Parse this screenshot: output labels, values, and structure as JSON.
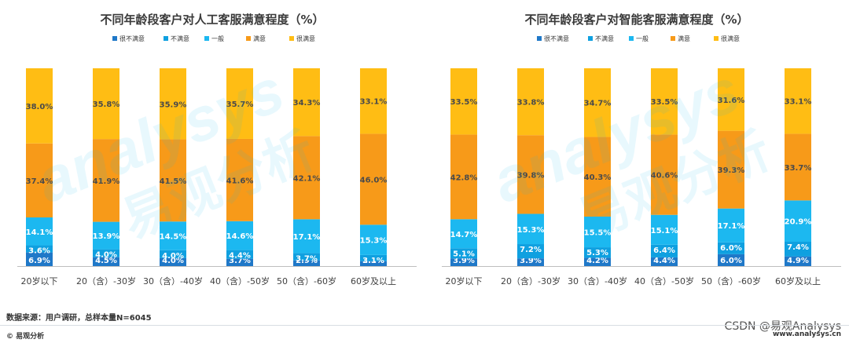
{
  "colors": {
    "很不满意": "#1f78c8",
    "不满意": "#0fa0e0",
    "一般": "#1cb8f0",
    "满意": "#f79a19",
    "很满意": "#ffbd14"
  },
  "chart_data": [
    {
      "type": "bar",
      "stacked": true,
      "title": "不同年龄段客户对人工客服满意程度（%）",
      "categories": [
        "20岁以下",
        "20（含）-30岁",
        "30（含）-40岁",
        "40（含）-50岁",
        "50（含）-60岁",
        "60岁及以上"
      ],
      "legend": [
        "很不满意",
        "不满意",
        "一般",
        "满意",
        "很满意"
      ],
      "legend_position": "top",
      "series": [
        {
          "name": "很不满意",
          "values": [
            6.9,
            4.5,
            4.0,
            3.7,
            2.9,
            2.5
          ]
        },
        {
          "name": "不满意",
          "values": [
            3.6,
            4.0,
            4.0,
            4.4,
            3.7,
            3.1
          ]
        },
        {
          "name": "一般",
          "values": [
            14.1,
            13.9,
            14.5,
            14.6,
            17.1,
            15.3
          ]
        },
        {
          "name": "满意",
          "values": [
            37.4,
            41.9,
            41.5,
            41.6,
            42.1,
            46.0
          ]
        },
        {
          "name": "很满意",
          "values": [
            38.0,
            35.8,
            35.9,
            35.7,
            34.3,
            33.1
          ]
        }
      ],
      "ylim": [
        0,
        100
      ],
      "grid": false
    },
    {
      "type": "bar",
      "stacked": true,
      "title": "不同年龄段客户对智能客服满意程度（%）",
      "categories": [
        "20岁以下",
        "20（含）-30岁",
        "30（含）-40岁",
        "40（含）-50岁",
        "50（含）-60岁",
        "60岁及以上"
      ],
      "legend": [
        "很不满意",
        "不满意",
        "一般",
        "满意",
        "很满意"
      ],
      "legend_position": "top",
      "series": [
        {
          "name": "很不满意",
          "values": [
            3.9,
            3.9,
            4.2,
            4.4,
            6.0,
            4.9
          ]
        },
        {
          "name": "不满意",
          "values": [
            5.1,
            7.2,
            5.3,
            6.4,
            6.0,
            7.4
          ]
        },
        {
          "name": "一般",
          "values": [
            14.7,
            15.3,
            15.5,
            15.1,
            17.1,
            20.9
          ]
        },
        {
          "name": "满意",
          "values": [
            42.8,
            39.8,
            40.3,
            40.6,
            39.3,
            33.7
          ]
        },
        {
          "name": "很满意",
          "values": [
            33.5,
            33.8,
            34.7,
            33.5,
            31.6,
            33.1
          ]
        }
      ],
      "ylim": [
        0,
        100
      ],
      "grid": false
    }
  ],
  "watermark": {
    "latin": "analysys",
    "cn": "易观分析"
  },
  "footer": {
    "source": "数据来源：用户调研，总样本量N=6045",
    "brand": "© 易观分析",
    "site": "www.analysys.cn",
    "csdn": "CSDN @易观Analysys"
  }
}
